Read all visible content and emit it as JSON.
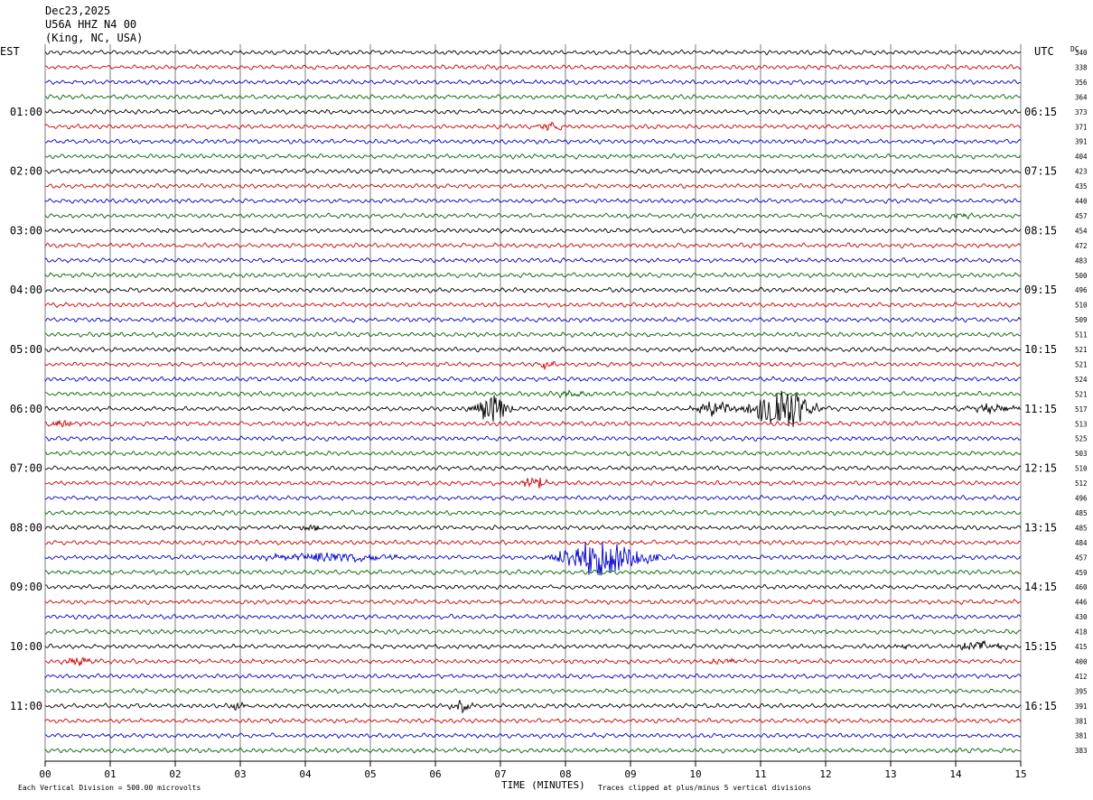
{
  "header": {
    "date": "Dec23,2025",
    "station": "U56A HHZ N4 00",
    "location": "(King, NC, USA)"
  },
  "left_axis_label": "EST",
  "right_axis_label": "UTC",
  "dc_header": "DC",
  "footer": {
    "vertical_division": "Each Vertical Division =  500.00 microvolts",
    "time_label": "TIME (MINUTES)",
    "clip_note": "Traces clipped at plus/minus 5 vertical divisions"
  },
  "chart_data": {
    "type": "line",
    "title": "",
    "xlabel": "TIME (MINUTES)",
    "x_ticks": [
      "00",
      "01",
      "02",
      "03",
      "04",
      "05",
      "06",
      "07",
      "08",
      "09",
      "10",
      "11",
      "12",
      "13",
      "14",
      "15"
    ],
    "xlim": [
      0,
      15
    ],
    "grid": true,
    "trace_colors": [
      "#000000",
      "#cc0000",
      "#0000cc",
      "#006600"
    ],
    "left_time_labels": [
      "01:00",
      "02:00",
      "03:00",
      "04:00",
      "05:00",
      "06:00",
      "07:00",
      "08:00",
      "09:00",
      "10:00",
      "11:00"
    ],
    "right_time_labels": [
      "06:15",
      "07:15",
      "08:15",
      "09:15",
      "10:15",
      "11:15",
      "12:15",
      "13:15",
      "14:15",
      "15:15",
      "16:15"
    ],
    "hour_label_rows": [
      4,
      8,
      12,
      16,
      20,
      24,
      28,
      32,
      36,
      40,
      44
    ],
    "dc_offsets": [
      "340",
      "338",
      "356",
      "364",
      "373",
      "371",
      "391",
      "404",
      "423",
      "435",
      "440",
      "457",
      "454",
      "472",
      "483",
      "500",
      "496",
      "510",
      "509",
      "511",
      "521",
      "521",
      "524",
      "521",
      "517",
      "513",
      "525",
      "503",
      "510",
      "512",
      "496",
      "485",
      "485",
      "484",
      "457",
      "459",
      "460",
      "446",
      "430",
      "418",
      "415",
      "400",
      "412",
      "395",
      "391",
      "381",
      "381",
      "383"
    ],
    "events": [
      {
        "row": 5,
        "minute": 7.8,
        "amplitude": 0.45,
        "duration": 0.35
      },
      {
        "row": 11,
        "minute": 14.1,
        "amplitude": 0.3,
        "duration": 0.4
      },
      {
        "row": 21,
        "minute": 7.7,
        "amplitude": 0.5,
        "duration": 0.25
      },
      {
        "row": 23,
        "minute": 8.1,
        "amplitude": 0.3,
        "duration": 0.5
      },
      {
        "row": 24,
        "minute": 6.85,
        "amplitude": 2.2,
        "duration": 0.45
      },
      {
        "row": 24,
        "minute": 10.3,
        "amplitude": 1.0,
        "duration": 0.5
      },
      {
        "row": 24,
        "minute": 11.3,
        "amplitude": 4.0,
        "duration": 0.7
      },
      {
        "row": 24,
        "minute": 14.6,
        "amplitude": 0.6,
        "duration": 0.8
      },
      {
        "row": 25,
        "minute": 0.3,
        "amplitude": 0.5,
        "duration": 0.4
      },
      {
        "row": 29,
        "minute": 7.5,
        "amplitude": 1.1,
        "duration": 0.3
      },
      {
        "row": 32,
        "minute": 4.05,
        "amplitude": 0.6,
        "duration": 0.3
      },
      {
        "row": 34,
        "minute": 4.4,
        "amplitude": 0.7,
        "duration": 1.6
      },
      {
        "row": 34,
        "minute": 8.5,
        "amplitude": 3.0,
        "duration": 0.9
      },
      {
        "row": 34,
        "minute": 9.2,
        "amplitude": 1.0,
        "duration": 0.4
      },
      {
        "row": 40,
        "minute": 13.1,
        "amplitude": 0.4,
        "duration": 0.3
      },
      {
        "row": 40,
        "minute": 14.4,
        "amplitude": 0.8,
        "duration": 0.6
      },
      {
        "row": 41,
        "minute": 0.5,
        "amplitude": 0.5,
        "duration": 0.4
      },
      {
        "row": 41,
        "minute": 10.4,
        "amplitude": 0.4,
        "duration": 0.4
      },
      {
        "row": 44,
        "minute": 3.0,
        "amplitude": 0.6,
        "duration": 0.3
      },
      {
        "row": 44,
        "minute": 6.4,
        "amplitude": 0.8,
        "duration": 0.25
      }
    ]
  }
}
